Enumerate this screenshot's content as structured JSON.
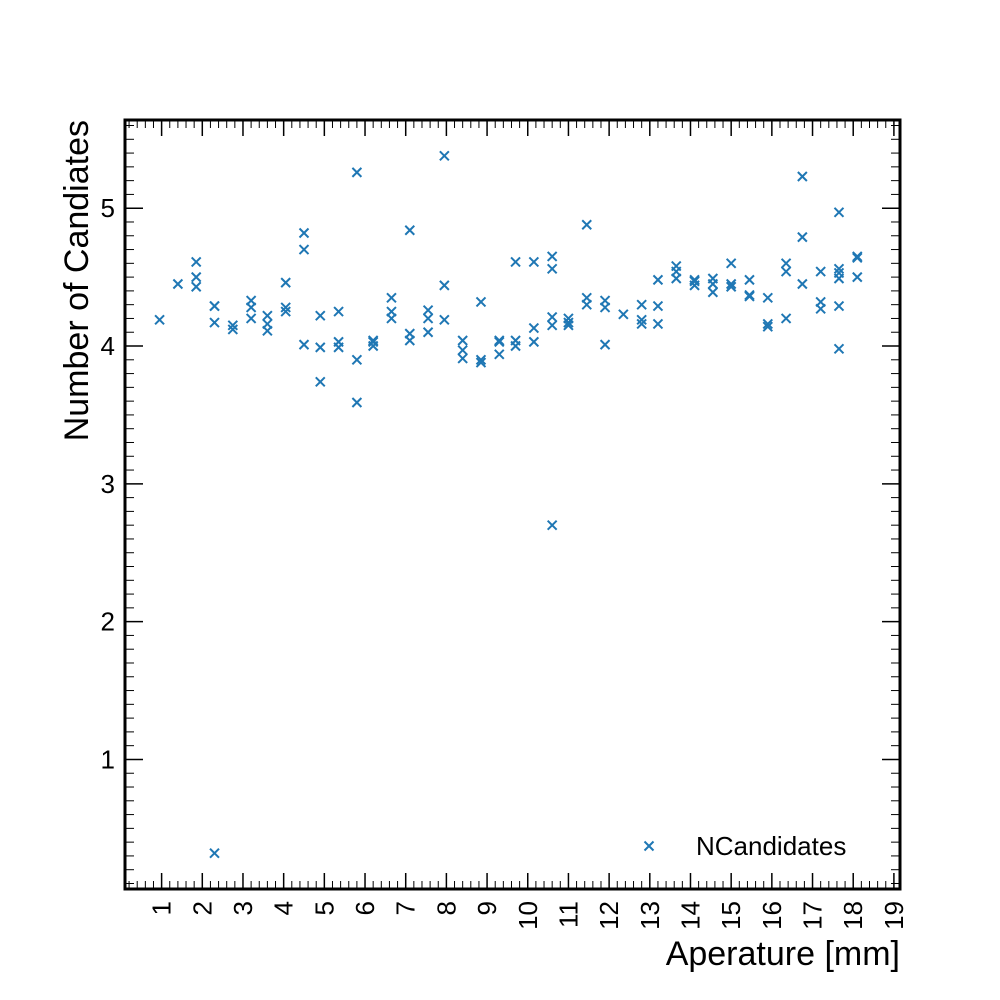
{
  "chart_data": {
    "type": "scatter",
    "title": "",
    "xlabel": "Aperature [mm]",
    "ylabel": "Number of Candiates",
    "xlim": [
      0.1,
      19.15
    ],
    "ylim": [
      0.06,
      5.64
    ],
    "xticks": [
      "1",
      "2",
      "3",
      "4",
      "5",
      "6",
      "7",
      "8",
      "9",
      "10",
      "11",
      "12",
      "13",
      "14",
      "15",
      "16",
      "17",
      "18",
      "19"
    ],
    "yticks": [
      "1",
      "2",
      "3",
      "4",
      "5"
    ],
    "grid": false,
    "legend_position": "bottom-right",
    "color": "#1f77b4",
    "series": [
      {
        "name": "NCandidates",
        "marker": "x",
        "points": [
          [
            0.95,
            4.19
          ],
          [
            1.4,
            4.45
          ],
          [
            1.85,
            4.61
          ],
          [
            1.85,
            4.5
          ],
          [
            1.85,
            4.43
          ],
          [
            2.3,
            4.29
          ],
          [
            2.3,
            4.29
          ],
          [
            2.3,
            4.17
          ],
          [
            2.3,
            0.32
          ],
          [
            2.75,
            4.15
          ],
          [
            2.75,
            4.12
          ],
          [
            3.2,
            4.33
          ],
          [
            3.2,
            4.28
          ],
          [
            3.2,
            4.2
          ],
          [
            3.6,
            4.22
          ],
          [
            3.6,
            4.16
          ],
          [
            3.6,
            4.11
          ],
          [
            4.05,
            4.46
          ],
          [
            4.05,
            4.28
          ],
          [
            4.05,
            4.25
          ],
          [
            4.5,
            4.82
          ],
          [
            4.5,
            4.7
          ],
          [
            4.5,
            4.01
          ],
          [
            4.9,
            4.22
          ],
          [
            4.9,
            3.99
          ],
          [
            4.9,
            3.74
          ],
          [
            5.35,
            4.25
          ],
          [
            5.35,
            4.03
          ],
          [
            5.35,
            3.99
          ],
          [
            5.8,
            5.26
          ],
          [
            5.8,
            3.9
          ],
          [
            5.8,
            3.59
          ],
          [
            6.2,
            4.04
          ],
          [
            6.2,
            4.03
          ],
          [
            6.2,
            4.0
          ],
          [
            6.65,
            4.35
          ],
          [
            6.65,
            4.25
          ],
          [
            6.65,
            4.2
          ],
          [
            7.1,
            4.84
          ],
          [
            7.1,
            4.09
          ],
          [
            7.1,
            4.04
          ],
          [
            7.55,
            4.26
          ],
          [
            7.55,
            4.2
          ],
          [
            7.55,
            4.1
          ],
          [
            7.95,
            5.38
          ],
          [
            7.95,
            4.44
          ],
          [
            7.95,
            4.19
          ],
          [
            8.4,
            4.04
          ],
          [
            8.4,
            3.97
          ],
          [
            8.4,
            3.91
          ],
          [
            8.85,
            4.32
          ],
          [
            8.85,
            3.9
          ],
          [
            8.85,
            3.88
          ],
          [
            9.3,
            4.04
          ],
          [
            9.3,
            4.03
          ],
          [
            9.3,
            3.94
          ],
          [
            9.7,
            4.61
          ],
          [
            9.7,
            4.04
          ],
          [
            9.7,
            4.0
          ],
          [
            10.15,
            4.61
          ],
          [
            10.15,
            4.13
          ],
          [
            10.15,
            4.03
          ],
          [
            10.6,
            4.65
          ],
          [
            10.6,
            4.56
          ],
          [
            10.6,
            4.21
          ],
          [
            10.6,
            4.15
          ],
          [
            10.6,
            2.7
          ],
          [
            11.0,
            4.2
          ],
          [
            11.0,
            4.17
          ],
          [
            11.0,
            4.15
          ],
          [
            11.45,
            4.88
          ],
          [
            11.45,
            4.35
          ],
          [
            11.45,
            4.3
          ],
          [
            11.9,
            4.33
          ],
          [
            11.9,
            4.28
          ],
          [
            11.9,
            4.01
          ],
          [
            12.35,
            4.23
          ],
          [
            12.8,
            4.3
          ],
          [
            12.8,
            4.19
          ],
          [
            12.8,
            4.16
          ],
          [
            13.2,
            4.48
          ],
          [
            13.2,
            4.29
          ],
          [
            13.2,
            4.16
          ],
          [
            13.65,
            4.58
          ],
          [
            13.65,
            4.54
          ],
          [
            13.65,
            4.49
          ],
          [
            14.1,
            4.48
          ],
          [
            14.1,
            4.47
          ],
          [
            14.1,
            4.44
          ],
          [
            14.55,
            4.49
          ],
          [
            14.55,
            4.45
          ],
          [
            14.55,
            4.39
          ],
          [
            15.0,
            4.6
          ],
          [
            15.0,
            4.45
          ],
          [
            15.0,
            4.43
          ],
          [
            15.45,
            4.48
          ],
          [
            15.45,
            4.37
          ],
          [
            15.45,
            4.36
          ],
          [
            15.9,
            4.35
          ],
          [
            15.9,
            4.16
          ],
          [
            15.9,
            4.14
          ],
          [
            16.35,
            4.6
          ],
          [
            16.35,
            4.54
          ],
          [
            16.35,
            4.2
          ],
          [
            16.75,
            5.23
          ],
          [
            16.75,
            4.79
          ],
          [
            16.75,
            4.45
          ],
          [
            17.2,
            4.54
          ],
          [
            17.2,
            4.32
          ],
          [
            17.2,
            4.27
          ],
          [
            17.65,
            4.97
          ],
          [
            17.65,
            4.56
          ],
          [
            17.65,
            4.53
          ],
          [
            17.65,
            4.49
          ],
          [
            17.65,
            4.29
          ],
          [
            17.65,
            3.98
          ],
          [
            18.1,
            4.65
          ],
          [
            18.1,
            4.64
          ],
          [
            18.1,
            4.5
          ]
        ]
      }
    ]
  }
}
